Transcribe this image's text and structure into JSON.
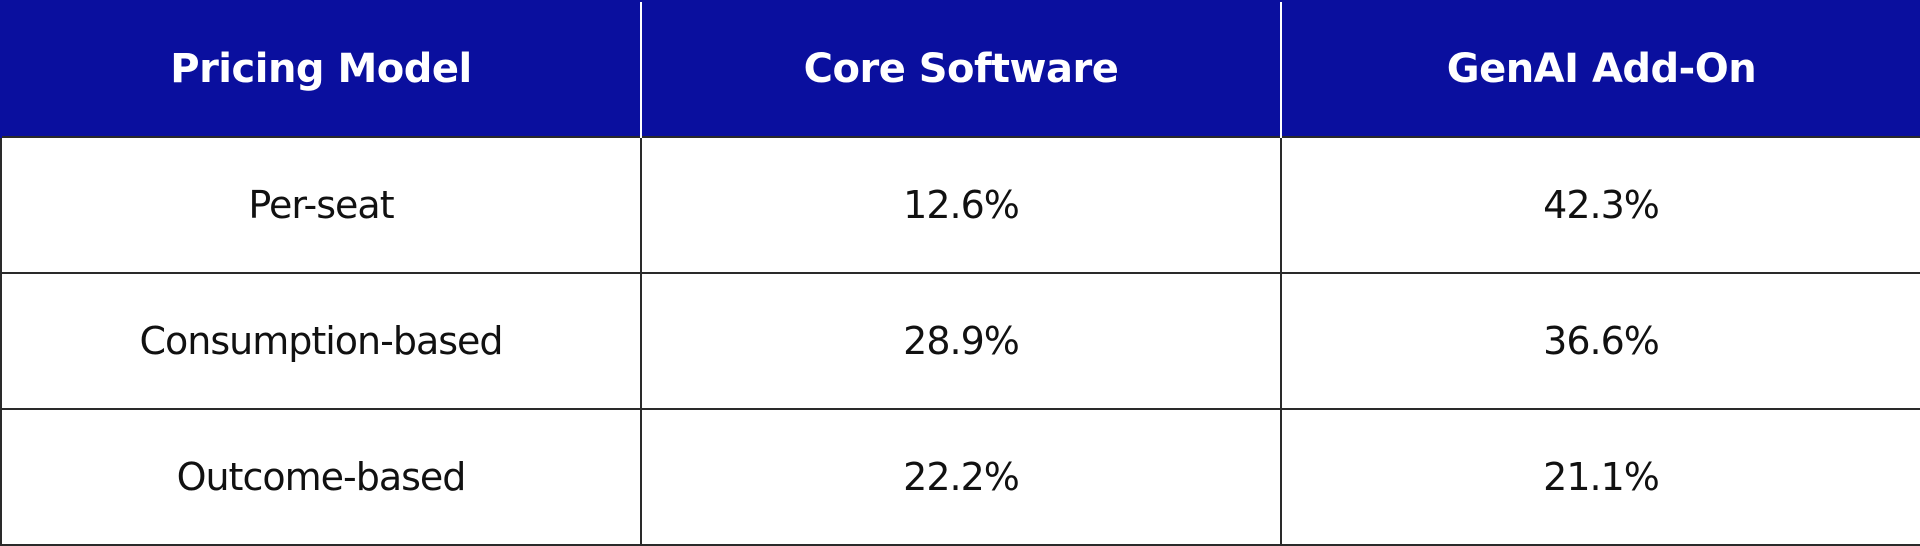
{
  "colors": {
    "header_background": "#0a0f9e",
    "header_text": "#ffffff",
    "body_text": "#111111",
    "grid_lines": "#2a2a2a"
  },
  "chart_data": {
    "type": "table",
    "columns": [
      "Pricing Model",
      "Core Software",
      "GenAI Add-On"
    ],
    "rows": [
      [
        "Per-seat",
        "12.6%",
        "42.3%"
      ],
      [
        "Consumption-based",
        "28.9%",
        "36.6%"
      ],
      [
        "Outcome-based",
        "22.2%",
        "21.1%"
      ]
    ]
  }
}
